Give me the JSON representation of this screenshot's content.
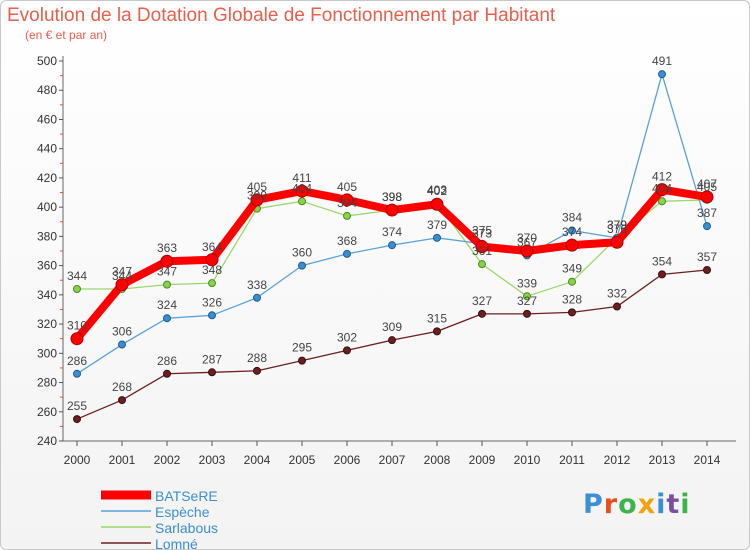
{
  "title": "Evolution de la Dotation Globale de Fonctionnement par Habitant",
  "subtitle": "(en € et par an)",
  "logo_text": "Proxiti",
  "chart_data": {
    "type": "line",
    "title": "Evolution de la Dotation Globale de Fonctionnement par Habitant",
    "subtitle": "(en € et par an)",
    "x": [
      "2000",
      "2001",
      "2002",
      "2003",
      "2004",
      "2005",
      "2006",
      "2007",
      "2008",
      "2009",
      "2010",
      "2011",
      "2012",
      "2013",
      "2014"
    ],
    "ylim": [
      240,
      500
    ],
    "yticks": [
      240,
      260,
      280,
      300,
      320,
      340,
      360,
      380,
      400,
      420,
      440,
      460,
      480,
      500
    ],
    "grid": false,
    "legend_position": "bottom-left",
    "series": [
      {
        "name": "BATSeRE",
        "color": "#ff0000",
        "values": [
          310,
          347,
          363,
          364,
          405,
          411,
          405,
          398,
          402,
          373,
          370,
          374,
          376,
          412,
          407
        ]
      },
      {
        "name": "Espèche",
        "color": "#3b8ed0",
        "values": [
          286,
          306,
          324,
          326,
          338,
          360,
          368,
          374,
          379,
          375,
          367,
          384,
          379,
          491,
          387
        ]
      },
      {
        "name": "Sarlabous",
        "color": "#86d44a",
        "values": [
          344,
          344,
          347,
          348,
          399,
          404,
          394,
          398,
          403,
          361,
          339,
          349,
          379,
          404,
          405
        ]
      },
      {
        "name": "Lomné",
        "color": "#6b1f1f",
        "values": [
          255,
          268,
          286,
          287,
          288,
          295,
          302,
          309,
          315,
          327,
          327,
          328,
          332,
          354,
          357
        ]
      }
    ]
  }
}
